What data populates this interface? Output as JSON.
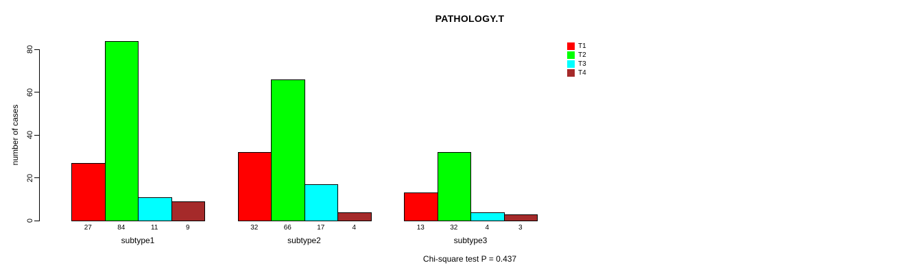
{
  "chart_data": {
    "type": "bar",
    "title": "PATHOLOGY.T",
    "ylabel": "number of cases",
    "xlabel": "",
    "categories": [
      "subtype1",
      "subtype2",
      "subtype3"
    ],
    "series": [
      {
        "name": "T1",
        "color": "#FF0000",
        "values": [
          27,
          32,
          13
        ]
      },
      {
        "name": "T2",
        "color": "#00FF00",
        "values": [
          84,
          66,
          32
        ]
      },
      {
        "name": "T3",
        "color": "#00FFFF",
        "values": [
          11,
          17,
          4
        ]
      },
      {
        "name": "T4",
        "color": "#A52A2A",
        "values": [
          9,
          4,
          3
        ]
      }
    ],
    "yticks": [
      0,
      20,
      40,
      60,
      80
    ],
    "ylim": [
      0,
      80
    ],
    "grid": "off",
    "bar_value_labels": true,
    "legend_position": "top-right",
    "legend_entries": [
      "T1",
      "T2",
      "T3",
      "T4"
    ],
    "annotation": "Chi-square test P = 0.437",
    "axis_color": "#000000",
    "bar_border_color": "#000000",
    "background_color": "#FFFFFF"
  }
}
